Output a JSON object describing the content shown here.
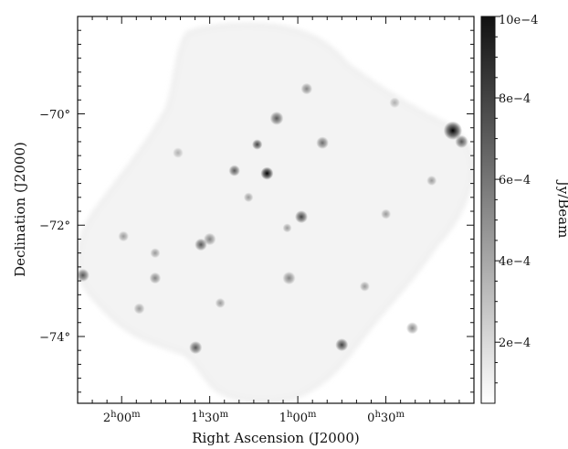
{
  "chart_data": {
    "type": "heatmap",
    "title": "",
    "xlabel": "Right Ascension (J2000)",
    "ylabel": "Declination (J2000)",
    "x_ticks": [
      {
        "value_hours": 2.0,
        "text": "2h00m"
      },
      {
        "value_hours": 1.5,
        "text": "1h30m"
      },
      {
        "value_hours": 1.0,
        "text": "1h00m"
      },
      {
        "value_hours": 0.5,
        "text": "0h30m"
      }
    ],
    "y_ticks": [
      {
        "value": -70,
        "text": "−70°"
      },
      {
        "value": -72,
        "text": "−72°"
      },
      {
        "value": -74,
        "text": "−74°"
      }
    ],
    "ra_range_hours": [
      2.25,
      0.0
    ],
    "dec_range_deg": [
      -75.2,
      -68.25
    ],
    "colorbar": {
      "label": "Jy/Beam",
      "range": [
        5e-05,
        0.001
      ],
      "ticks": [
        {
          "value": 0.0002,
          "text": "2e−4"
        },
        {
          "value": 0.0004,
          "text": "4e−4"
        },
        {
          "value": 0.0006,
          "text": "6e−4"
        },
        {
          "value": 0.0008,
          "text": "8e−4"
        },
        {
          "value": 0.001,
          "text": "10e−4"
        }
      ],
      "colormap": [
        "#ffffff",
        "#111111"
      ]
    },
    "sources": [
      {
        "ra": 1.175,
        "dec": -71.07,
        "flux": 0.001,
        "size": 1.0
      },
      {
        "ra": 1.23,
        "dec": -70.55,
        "flux": 0.0007,
        "size": 0.8
      },
      {
        "ra": 1.36,
        "dec": -71.02,
        "flux": 0.0006,
        "size": 1.0
      },
      {
        "ra": 0.98,
        "dec": -71.85,
        "flux": 0.0007,
        "size": 1.2
      },
      {
        "ra": 1.12,
        "dec": -70.08,
        "flux": 0.0006,
        "size": 1.4
      },
      {
        "ra": 0.86,
        "dec": -70.52,
        "flux": 0.0005,
        "size": 1.3
      },
      {
        "ra": 0.95,
        "dec": -69.55,
        "flux": 0.0004,
        "size": 1.2
      },
      {
        "ra": 1.55,
        "dec": -72.35,
        "flux": 0.0006,
        "size": 1.2
      },
      {
        "ra": 1.5,
        "dec": -72.25,
        "flux": 0.0004,
        "size": 1.4
      },
      {
        "ra": 0.12,
        "dec": -70.3,
        "flux": 0.001,
        "size": 1.8
      },
      {
        "ra": 0.07,
        "dec": -70.5,
        "flux": 0.0006,
        "size": 1.3
      },
      {
        "ra": 1.05,
        "dec": -72.95,
        "flux": 0.0004,
        "size": 1.5
      },
      {
        "ra": 0.75,
        "dec": -74.15,
        "flux": 0.0007,
        "size": 1.2
      },
      {
        "ra": 1.58,
        "dec": -74.2,
        "flux": 0.0006,
        "size": 1.3
      },
      {
        "ra": 1.81,
        "dec": -72.95,
        "flux": 0.0004,
        "size": 1.2
      },
      {
        "ra": 1.99,
        "dec": -72.2,
        "flux": 0.0003,
        "size": 1.1
      },
      {
        "ra": 1.81,
        "dec": -72.5,
        "flux": 0.0003,
        "size": 1.0
      },
      {
        "ra": 2.22,
        "dec": -72.9,
        "flux": 0.0006,
        "size": 1.3
      },
      {
        "ra": 0.24,
        "dec": -71.2,
        "flux": 0.0003,
        "size": 1.0
      },
      {
        "ra": 0.5,
        "dec": -71.8,
        "flux": 0.0003,
        "size": 1.0
      },
      {
        "ra": 0.35,
        "dec": -73.85,
        "flux": 0.0004,
        "size": 1.3
      },
      {
        "ra": 1.28,
        "dec": -71.5,
        "flux": 0.0003,
        "size": 0.9
      },
      {
        "ra": 1.06,
        "dec": -72.05,
        "flux": 0.0003,
        "size": 0.8
      },
      {
        "ra": 1.44,
        "dec": -73.4,
        "flux": 0.0003,
        "size": 1.0
      },
      {
        "ra": 0.62,
        "dec": -73.1,
        "flux": 0.0003,
        "size": 1.0
      },
      {
        "ra": 1.68,
        "dec": -70.7,
        "flux": 0.0002,
        "size": 1.2
      },
      {
        "ra": 0.45,
        "dec": -69.8,
        "flux": 0.0002,
        "size": 1.2
      },
      {
        "ra": 1.9,
        "dec": -73.5,
        "flux": 0.0003,
        "size": 1.2
      }
    ]
  }
}
